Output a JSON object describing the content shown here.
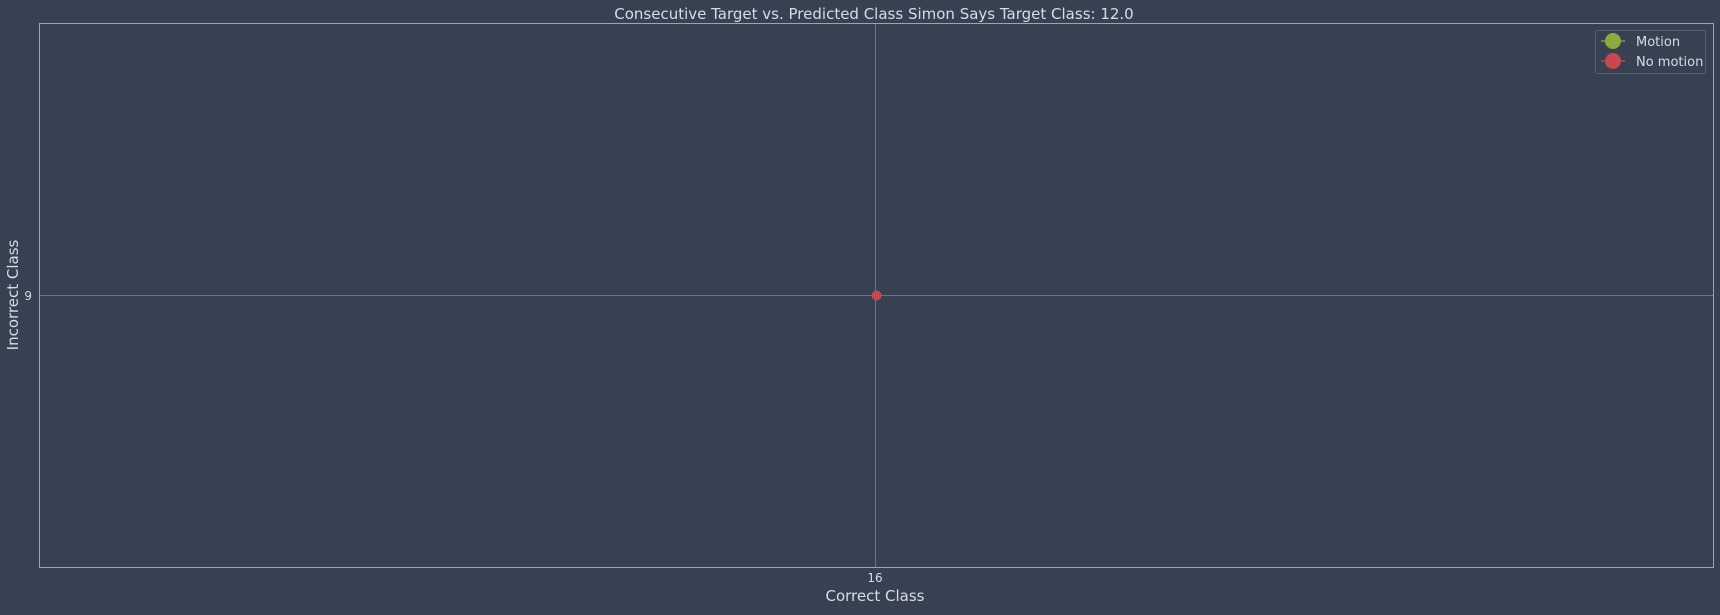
{
  "chart_data": {
    "type": "scatter",
    "title": "Consecutive Target vs. Predicted Class Simon Says Target Class: 12.0",
    "xlabel": "Correct Class",
    "ylabel": "Incorrect Class",
    "x_ticks": [
      "16"
    ],
    "y_ticks": [
      "9"
    ],
    "grid": true,
    "legend_position": "top-right",
    "series": [
      {
        "name": "Motion",
        "color": "#8aab3e",
        "points": []
      },
      {
        "name": "No motion",
        "color": "#c9474f",
        "points": [
          {
            "x": 16,
            "y": 9
          }
        ]
      }
    ]
  },
  "colors": {
    "background": "#384152",
    "axis": "#9aa6b8",
    "grid": "#6b7585",
    "text": "#d7dce4"
  }
}
